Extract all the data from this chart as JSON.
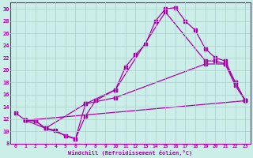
{
  "xlabel": "Windchill (Refroidissement éolien,°C)",
  "background_color": "#cceee8",
  "grid_color": "#aacccc",
  "line_color": "#aa00aa",
  "xlim": [
    -0.5,
    23.5
  ],
  "ylim": [
    8,
    31
  ],
  "xticks": [
    0,
    1,
    2,
    3,
    4,
    5,
    6,
    7,
    8,
    9,
    10,
    11,
    12,
    13,
    14,
    15,
    16,
    17,
    18,
    19,
    20,
    21,
    22,
    23
  ],
  "yticks": [
    8,
    10,
    12,
    14,
    16,
    18,
    20,
    22,
    24,
    26,
    28,
    30
  ],
  "line1_x": [
    0,
    1,
    2,
    3,
    4,
    5,
    6,
    7,
    8,
    10,
    11,
    12,
    13,
    14,
    15,
    16,
    17,
    18,
    19,
    20,
    21,
    22,
    23
  ],
  "line1_y": [
    13,
    11.8,
    11.7,
    10.5,
    10.2,
    9.2,
    8.8,
    12.5,
    15.0,
    16.8,
    20.5,
    22.5,
    24.2,
    28.0,
    30.0,
    30.2,
    28.0,
    26.5,
    23.5,
    22.0,
    21.5,
    18.0,
    15.0
  ],
  "line2_x": [
    1,
    2,
    3,
    6,
    7,
    10,
    15,
    19,
    20,
    21,
    22,
    23
  ],
  "line2_y": [
    11.8,
    11.7,
    10.5,
    8.8,
    14.5,
    16.8,
    29.5,
    21.5,
    21.5,
    21.0,
    18.0,
    15.0
  ],
  "line3_x": [
    1,
    3,
    7,
    10,
    19,
    21,
    22,
    23
  ],
  "line3_y": [
    11.8,
    10.5,
    14.5,
    15.5,
    21.0,
    21.0,
    17.5,
    15.0
  ],
  "line4_x": [
    1,
    23
  ],
  "line4_y": [
    11.8,
    15.0
  ]
}
